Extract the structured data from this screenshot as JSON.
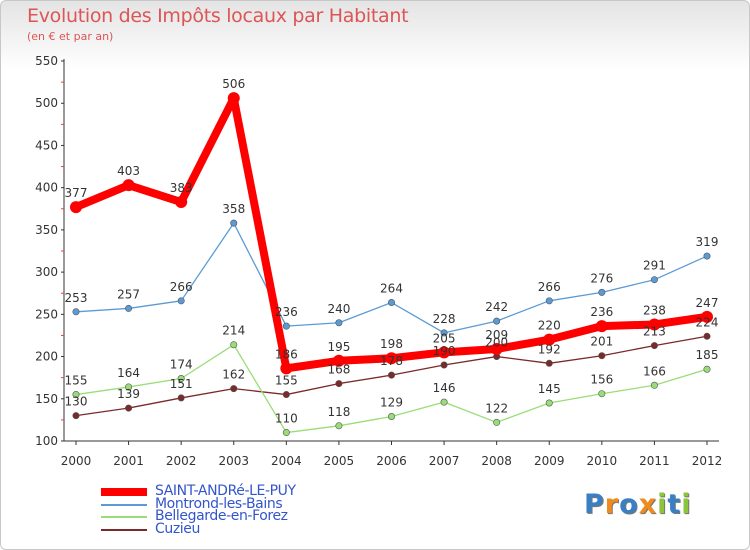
{
  "title": "Evolution des Impôts locaux par Habitant",
  "subtitle": "(en € et par an)",
  "logo": {
    "text": "Proxiti",
    "letters": [
      "P",
      "r",
      "o",
      "x",
      "i",
      "t",
      "i"
    ],
    "colors": [
      "#3a7fc4",
      "#f08a1c",
      "#3a7fc4",
      "#f08a1c",
      "#8cc43c",
      "#3a7fc4",
      "#8cc43c"
    ]
  },
  "chart_data": {
    "type": "line",
    "categories": [
      "2000",
      "2001",
      "2002",
      "2003",
      "2004",
      "2005",
      "2006",
      "2007",
      "2008",
      "2009",
      "2010",
      "2011",
      "2012"
    ],
    "ylim": [
      100,
      550
    ],
    "yticks": [
      100,
      150,
      200,
      250,
      300,
      350,
      400,
      450,
      500,
      550
    ],
    "grid": false,
    "legend_position": "bottom-left",
    "series": [
      {
        "name": "SAINT-ANDRé-LE-PUY",
        "color": "#ff0000",
        "values": [
          377,
          403,
          383,
          506,
          186,
          195,
          198,
          205,
          209,
          220,
          236,
          238,
          247
        ]
      },
      {
        "name": "Montrond-les-Bains",
        "color": "#5b9bd5",
        "values": [
          253,
          257,
          266,
          358,
          236,
          240,
          264,
          228,
          242,
          266,
          276,
          291,
          319
        ]
      },
      {
        "name": "Bellegarde-en-Forez",
        "color": "#99dd77",
        "values": [
          155,
          164,
          174,
          214,
          110,
          118,
          129,
          146,
          122,
          145,
          156,
          166,
          185
        ]
      },
      {
        "name": "Cuzieu",
        "color": "#7a2a2a",
        "values": [
          130,
          139,
          151,
          162,
          155,
          168,
          178,
          190,
          200,
          192,
          201,
          213,
          224
        ]
      }
    ]
  }
}
